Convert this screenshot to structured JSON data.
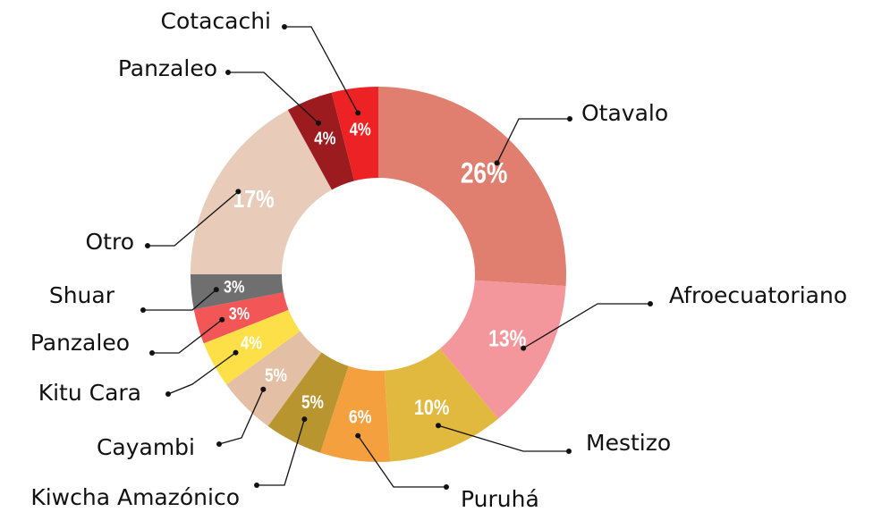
{
  "chart_data": {
    "type": "donut",
    "categories": [
      "Otavalo",
      "Afroecuatoriano",
      "Mestizo",
      "Puruhá",
      "Kiwcha Amazónico",
      "Cayambi",
      "Kitu Cara",
      "Panzaleo",
      "Shuar",
      "Otro",
      "Panzaleo",
      "Cotacachi"
    ],
    "values": [
      26,
      13,
      10,
      6,
      5,
      5,
      4,
      3,
      3,
      17,
      4,
      4
    ],
    "value_labels": [
      "26%",
      "13%",
      "10%",
      "6%",
      "5%",
      "5%",
      "4%",
      "3%",
      "3%",
      "17%",
      "4%",
      "4%"
    ],
    "colors": [
      "#e07f6f",
      "#f4979d",
      "#e2b93f",
      "#f5a03f",
      "#b8952f",
      "#e3bfa5",
      "#fde047",
      "#f25656",
      "#6f6f70",
      "#e8cbb8",
      "#9b1b1f",
      "#ed2224"
    ]
  }
}
